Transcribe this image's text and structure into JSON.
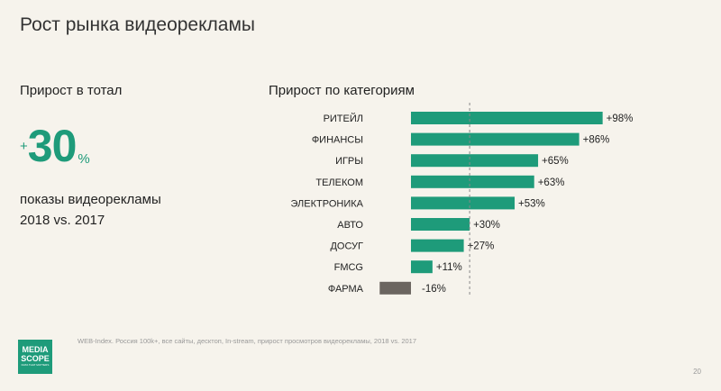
{
  "page": {
    "title": "Рост рынка видеорекламы",
    "left_subtitle": "Прирост в тотал",
    "big_plus": "+",
    "big_number": "30",
    "big_percent": "%",
    "desc_line1": "показы видеорекламы",
    "desc_line2": "2018 vs. 2017",
    "chart_title": "Прирост по категориям",
    "footnote": "WEB-Index. Россия 100k+, все сайты, десктоп, In-stream, прирост просмотров видеорекламы, 2018 vs. 2017",
    "page_number": "20",
    "logo_line1": "MEDIA",
    "logo_line2": "SCOPE",
    "logo_tagline": "DATA THAT MATTERS"
  },
  "colors": {
    "positive": "#1e9b7a",
    "negative": "#6b6560",
    "reference_line": "#888888"
  },
  "chart_data": {
    "type": "bar",
    "orientation": "horizontal",
    "title": "Прирост по категориям",
    "categories": [
      "РИТЕЙЛ",
      "ФИНАНСЫ",
      "ИГРЫ",
      "ТЕЛЕКОМ",
      "ЭЛЕКТРОНИКА",
      "АВТО",
      "ДОСУГ",
      "FMCG",
      "ФАРМА"
    ],
    "values": [
      98,
      86,
      65,
      63,
      53,
      30,
      27,
      11,
      -16
    ],
    "value_labels": [
      "+98%",
      "+86%",
      "+65%",
      "+63%",
      "+53%",
      "+30%",
      "+27%",
      "+11%",
      "-16%"
    ],
    "reference_line_value": 30,
    "reference_line_style": "dashed",
    "xlim": [
      -20,
      100
    ],
    "grid": false,
    "legend": "none"
  }
}
